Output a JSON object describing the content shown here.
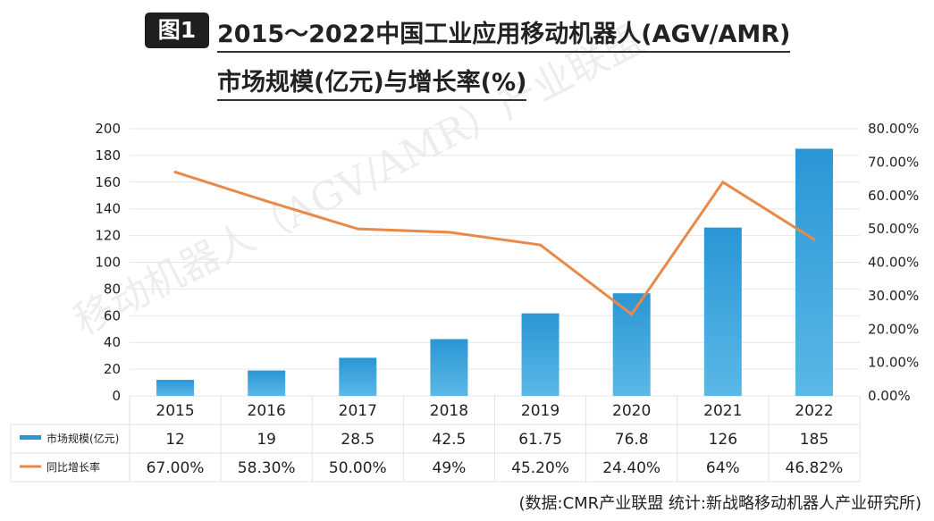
{
  "figure_label": "图1",
  "title_line1": "2015～2022中国工业应用移动机器人(AGV/AMR)",
  "title_line2": "市场规模(亿元)与增长率(%)",
  "source": "(数据:CMR产业联盟  统计:新战略移动机器人产业研究所)",
  "watermark": "移动机器人（AGV/AMR）产业联盟",
  "colors": {
    "bar_top": "#2a96d4",
    "bar_bottom": "#5bb8e6",
    "line": "#e8894a",
    "grid": "#e6e6e6"
  },
  "chart_data": {
    "type": "bar",
    "categories": [
      "2015",
      "2016",
      "2017",
      "2018",
      "2019",
      "2020",
      "2021",
      "2022"
    ],
    "series": [
      {
        "name": "市场规模(亿元)",
        "type": "bar",
        "axis": "left",
        "values": [
          12,
          19,
          28.5,
          42.5,
          61.75,
          76.8,
          126,
          185
        ],
        "labels": [
          "12",
          "19",
          "28.5",
          "42.5",
          "61.75",
          "76.8",
          "126",
          "185"
        ]
      },
      {
        "name": "同比增长率",
        "type": "line",
        "axis": "right",
        "values": [
          67.0,
          58.3,
          50.0,
          49,
          45.2,
          24.4,
          64,
          46.82
        ],
        "labels": [
          "67.00%",
          "58.30%",
          "50.00%",
          "49%",
          "45.20%",
          "24.40%",
          "64%",
          "46.82%"
        ]
      }
    ],
    "y_left": {
      "min": 0,
      "max": 200,
      "ticks": [
        "0",
        "20",
        "40",
        "60",
        "80",
        "100",
        "120",
        "140",
        "160",
        "180",
        "200"
      ]
    },
    "y_right": {
      "min": 0,
      "max": 80,
      "ticks": [
        "0.00%",
        "10.00%",
        "20.00%",
        "30.00%",
        "40.00%",
        "50.00%",
        "60.00%",
        "70.00%",
        "80.00%"
      ]
    },
    "grid": true,
    "legend": "data-table"
  }
}
